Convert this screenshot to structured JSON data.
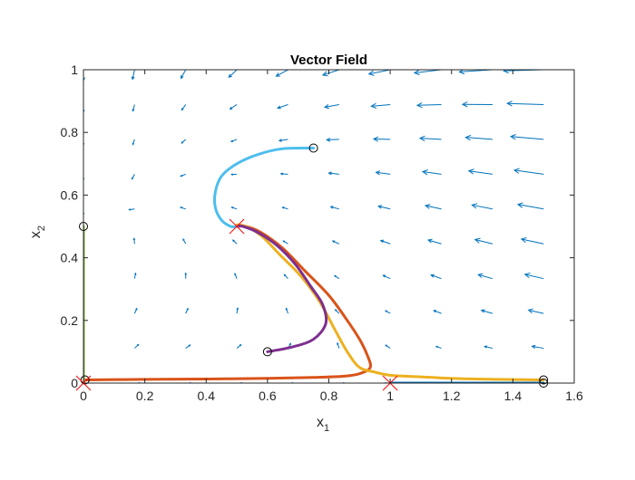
{
  "chart_data": {
    "type": "line",
    "title": "Vector Field",
    "xlabel": {
      "base": "x",
      "sub": "1"
    },
    "ylabel": {
      "base": "x",
      "sub": "2"
    },
    "xlim": [
      0,
      1.6
    ],
    "ylim": [
      0,
      1
    ],
    "xticks": [
      0,
      0.2,
      0.4,
      0.6,
      0.8,
      1,
      1.2,
      1.4,
      1.6
    ],
    "xtick_labels": [
      "0",
      "0.2",
      "0.4",
      "0.6",
      "0.8",
      "1",
      "1.2",
      "1.4",
      "1.6"
    ],
    "yticks": [
      0,
      0.2,
      0.4,
      0.6,
      0.8,
      1
    ],
    "ytick_labels": [
      "0",
      "0.2",
      "0.4",
      "0.6",
      "0.8",
      "1"
    ],
    "grid": false,
    "quiver": {
      "color": "#0072BD",
      "x_start": 0,
      "x_step": 0.1667,
      "x_count": 10,
      "y_start": 0,
      "y_step": 0.1111,
      "y_count": 10,
      "r": 1,
      "K": 1,
      "a": 2
    },
    "series": [
      {
        "color": "#0072BD",
        "points": [
          [
            1.5,
            0
          ],
          [
            1.2,
            0
          ],
          [
            1.0,
            0
          ]
        ]
      },
      {
        "color": "#D95319",
        "points": [
          [
            0.005,
            0.01
          ],
          [
            0.2,
            0.012
          ],
          [
            0.4,
            0.013
          ],
          [
            0.6,
            0.015
          ],
          [
            0.75,
            0.018
          ],
          [
            0.85,
            0.022
          ],
          [
            0.9,
            0.03
          ],
          [
            0.935,
            0.05
          ],
          [
            0.925,
            0.09
          ],
          [
            0.9,
            0.14
          ],
          [
            0.86,
            0.2
          ],
          [
            0.8,
            0.28
          ],
          [
            0.72,
            0.36
          ],
          [
            0.65,
            0.43
          ],
          [
            0.58,
            0.48
          ],
          [
            0.53,
            0.5
          ],
          [
            0.5,
            0.5
          ]
        ]
      },
      {
        "color": "#EDB120",
        "points": [
          [
            1.5,
            0.01
          ],
          [
            1.35,
            0.012
          ],
          [
            1.2,
            0.015
          ],
          [
            1.1,
            0.02
          ],
          [
            1.0,
            0.025
          ],
          [
            0.95,
            0.035
          ],
          [
            0.9,
            0.05
          ],
          [
            0.86,
            0.1
          ],
          [
            0.82,
            0.17
          ],
          [
            0.77,
            0.26
          ],
          [
            0.71,
            0.34
          ],
          [
            0.64,
            0.41
          ],
          [
            0.58,
            0.47
          ],
          [
            0.53,
            0.5
          ],
          [
            0.5,
            0.505
          ]
        ]
      },
      {
        "color": "#7E2F8E",
        "points": [
          [
            0.6,
            0.1
          ],
          [
            0.68,
            0.115
          ],
          [
            0.75,
            0.14
          ],
          [
            0.79,
            0.19
          ],
          [
            0.78,
            0.25
          ],
          [
            0.74,
            0.31
          ],
          [
            0.69,
            0.38
          ],
          [
            0.63,
            0.44
          ],
          [
            0.57,
            0.48
          ],
          [
            0.52,
            0.5
          ],
          [
            0.5,
            0.5
          ]
        ]
      },
      {
        "color": "#77AC30",
        "points": [
          [
            0.0,
            0.5
          ],
          [
            0.0,
            0.35
          ],
          [
            0.0,
            0.2
          ],
          [
            0.0,
            0.08
          ],
          [
            0.0,
            0.01
          ]
        ]
      },
      {
        "color": "#4DBEEE",
        "points": [
          [
            0.75,
            0.75
          ],
          [
            0.65,
            0.748
          ],
          [
            0.57,
            0.73
          ],
          [
            0.5,
            0.7
          ],
          [
            0.45,
            0.66
          ],
          [
            0.43,
            0.61
          ],
          [
            0.43,
            0.56
          ],
          [
            0.45,
            0.52
          ],
          [
            0.48,
            0.5
          ],
          [
            0.5,
            0.5
          ]
        ]
      }
    ],
    "initial_points": [
      [
        0.0,
        0.5
      ],
      [
        0.75,
        0.75
      ],
      [
        0.6,
        0.1
      ],
      [
        1.5,
        0.01
      ],
      [
        1.5,
        0.0
      ],
      [
        0.005,
        0.01
      ]
    ],
    "equilibria": [
      [
        0,
        0
      ],
      [
        1,
        0
      ],
      [
        0.5,
        0.5
      ]
    ],
    "equilibrium_color": "#FF0000"
  }
}
